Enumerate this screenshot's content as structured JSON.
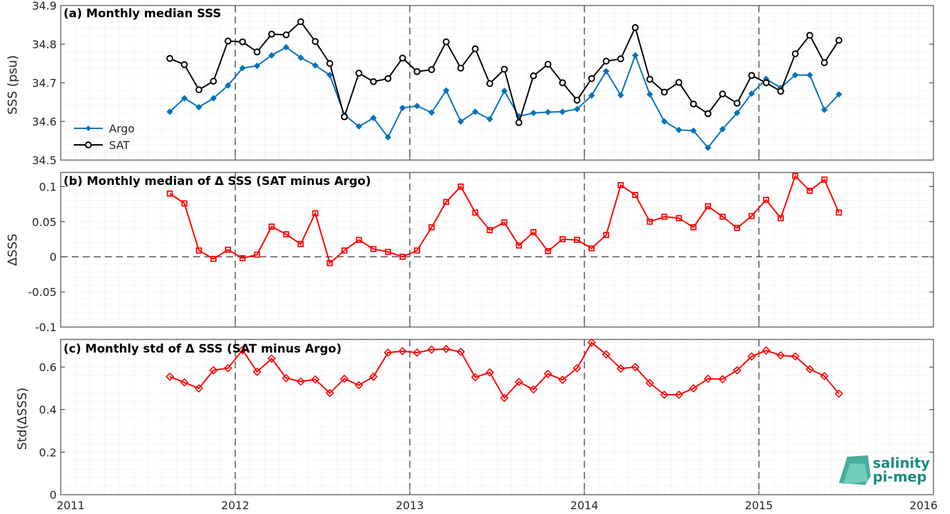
{
  "chart_data": [
    {
      "type": "line",
      "title": "(a) Monthly median SSS",
      "ylabel": "SSS (psu)",
      "xlim": [
        2011,
        2016
      ],
      "ylim": [
        34.5,
        34.9
      ],
      "xticks": [
        2011,
        2012,
        2013,
        2014,
        2015,
        2016
      ],
      "xtick_labels": [
        "2011",
        "2012",
        "2013",
        "2014",
        "2015",
        "2016"
      ],
      "yticks": [
        34.5,
        34.6,
        34.7,
        34.8,
        34.9
      ],
      "ytick_labels": [
        "34.5",
        "34.6",
        "34.7",
        "34.8",
        "34.9"
      ],
      "grid": true,
      "legend_position": "bottom-left",
      "x_start": 2011.625,
      "x_step": 0.083333,
      "series": [
        {
          "name": "Argo",
          "color": "#0072bd",
          "marker": "diamond",
          "values": [
            34.625,
            34.66,
            34.637,
            34.66,
            34.693,
            34.738,
            34.744,
            34.771,
            34.792,
            34.765,
            34.745,
            34.72,
            34.617,
            34.587,
            34.609,
            34.559,
            34.635,
            34.64,
            34.623,
            34.68,
            34.6,
            34.625,
            34.606,
            34.679,
            34.613,
            34.622,
            34.624,
            34.625,
            34.632,
            34.667,
            34.73,
            34.668,
            34.771,
            34.67,
            34.6,
            34.578,
            34.576,
            34.532,
            34.58,
            34.622,
            34.672,
            34.71,
            34.687,
            34.72,
            34.72,
            34.63,
            34.67
          ]
        },
        {
          "name": "SAT",
          "color": "#000000",
          "marker": "circle",
          "values": [
            34.763,
            34.747,
            34.682,
            34.704,
            34.808,
            34.806,
            34.78,
            34.826,
            34.824,
            34.858,
            34.807,
            34.75,
            34.612,
            34.725,
            34.703,
            34.711,
            34.764,
            34.729,
            34.734,
            34.806,
            34.738,
            34.788,
            34.698,
            34.735,
            34.597,
            34.718,
            34.748,
            34.7,
            34.655,
            34.711,
            34.756,
            34.762,
            34.843,
            34.709,
            34.676,
            34.701,
            34.645,
            34.62,
            34.671,
            34.647,
            34.719,
            34.7,
            34.678,
            34.775,
            34.823,
            34.752,
            34.81
          ]
        }
      ]
    },
    {
      "type": "line",
      "title": "(b) Monthly median of Δ SSS (SAT minus Argo)",
      "ylabel": "ΔSSS",
      "xlim": [
        2011,
        2016
      ],
      "ylim": [
        -0.1,
        0.12
      ],
      "xticks": [
        2011,
        2012,
        2013,
        2014,
        2015,
        2016
      ],
      "yticks": [
        -0.1,
        -0.05,
        0,
        0.05,
        0.1
      ],
      "ytick_labels": [
        "-0.1",
        "-0.05",
        "0",
        "0.05",
        "0.1"
      ],
      "grid": true,
      "zero_line": true,
      "x_start": 2011.625,
      "x_step": 0.083333,
      "series": [
        {
          "color": "#ff0000",
          "marker": "square",
          "values": [
            0.09,
            0.076,
            0.009,
            -0.003,
            0.01,
            -0.002,
            0.003,
            0.043,
            0.032,
            0.018,
            0.062,
            -0.009,
            0.009,
            0.024,
            0.011,
            0.007,
            0.0,
            0.009,
            0.042,
            0.078,
            0.1,
            0.063,
            0.038,
            0.049,
            0.016,
            0.035,
            0.008,
            0.025,
            0.024,
            0.012,
            0.031,
            0.102,
            0.088,
            0.05,
            0.057,
            0.055,
            0.042,
            0.072,
            0.057,
            0.041,
            0.058,
            0.081,
            0.055,
            0.115,
            0.094,
            0.11,
            0.063
          ]
        }
      ]
    },
    {
      "type": "line",
      "title": "(c) Monthly std of Δ SSS (SAT minus Argo)",
      "ylabel": "Std(ΔSSS)",
      "xlim": [
        2011,
        2016
      ],
      "ylim": [
        0,
        0.73
      ],
      "xticks": [
        2011,
        2012,
        2013,
        2014,
        2015,
        2016
      ],
      "xtick_labels": [
        "2011",
        "2012",
        "2013",
        "2014",
        "2015",
        "2016"
      ],
      "yticks": [
        0,
        0.2,
        0.4,
        0.6
      ],
      "ytick_labels": [
        "0",
        "0.2",
        "0.4",
        "0.6"
      ],
      "grid": true,
      "x_start": 2011.625,
      "x_step": 0.083333,
      "series": [
        {
          "color": "#ff0000",
          "marker": "diamond",
          "values": [
            0.555,
            0.528,
            0.5,
            0.585,
            0.595,
            0.68,
            0.578,
            0.64,
            0.548,
            0.532,
            0.542,
            0.478,
            0.545,
            0.515,
            0.555,
            0.668,
            0.675,
            0.668,
            0.682,
            0.685,
            0.672,
            0.552,
            0.575,
            0.455,
            0.53,
            0.495,
            0.568,
            0.54,
            0.595,
            0.715,
            0.66,
            0.593,
            0.6,
            0.525,
            0.47,
            0.47,
            0.5,
            0.545,
            0.543,
            0.585,
            0.65,
            0.678,
            0.655,
            0.65,
            0.59,
            0.558,
            0.475
          ]
        }
      ]
    }
  ],
  "legend": {
    "items": [
      "Argo",
      "SAT"
    ]
  },
  "logo": {
    "line1": "salinity",
    "line2": "pi-mep"
  }
}
